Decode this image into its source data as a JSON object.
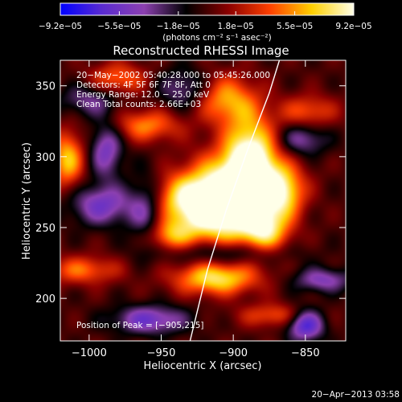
{
  "chart_data": {
    "type": "heatmap",
    "title": "Reconstructed RHESSI Image",
    "xlabel": "Heliocentric X (arcsec)",
    "ylabel": "Heliocentric Y (arcsec)",
    "xlim": [
      -1020,
      -822
    ],
    "ylim": [
      170,
      368
    ],
    "x_ticks": [
      -1000,
      -950,
      -900,
      -850
    ],
    "x_tick_labels": [
      "−1000",
      "−950",
      "−900",
      "−850"
    ],
    "y_ticks": [
      200,
      250,
      300,
      350
    ],
    "y_tick_labels": [
      "200",
      "250",
      "300",
      "350"
    ],
    "colorbar": {
      "min": -9.2e-05,
      "max": 9.2e-05,
      "ticks": [
        -9.2e-05,
        -5.5e-05,
        -1.8e-05,
        1.8e-05,
        5.5e-05,
        9.2e-05
      ],
      "tick_labels": [
        "−9.2e−05",
        "−5.5e−05",
        "−1.8e−05",
        "1.8e−05",
        "5.5e−05",
        "9.2e−05"
      ],
      "units_label": "(photons cm⁻² s⁻¹ asec⁻²)",
      "stops": [
        "#0000ff",
        "#5a2bd0",
        "#8c40b0",
        "#000000",
        "#8a0000",
        "#ff4000",
        "#ffd000",
        "#ffffe8"
      ]
    },
    "annotations": [
      "20−May−2002 05:40:28.000 to 05:45:26.000",
      "Detectors: 4F 5F 6F 7F 8F, Att 0",
      "Energy Range: 12.0 − 25.0 keV",
      "Clean      Total counts: 2.66E+03"
    ],
    "peak_label": "Position of Peak = [−905,215]",
    "peak": {
      "x": -905,
      "y": 215
    },
    "limb_curve": [
      {
        "x": -930,
        "y": 170
      },
      {
        "x": -918,
        "y": 220
      },
      {
        "x": -905,
        "y": 262
      },
      {
        "x": -890,
        "y": 305
      },
      {
        "x": -875,
        "y": 345
      },
      {
        "x": -868,
        "y": 368
      }
    ],
    "sources": [
      {
        "x": -925,
        "y": 270,
        "sx": 26,
        "sy": 13,
        "a": 0.7
      },
      {
        "x": -910,
        "y": 258,
        "sx": 20,
        "sy": 16,
        "a": 0.75
      },
      {
        "x": -895,
        "y": 285,
        "sx": 22,
        "sy": 16,
        "a": 0.65
      },
      {
        "x": -888,
        "y": 300,
        "sx": 12,
        "sy": 22,
        "a": 0.85
      },
      {
        "x": -878,
        "y": 248,
        "sx": 12,
        "sy": 12,
        "a": 0.7
      },
      {
        "x": -865,
        "y": 275,
        "sx": 10,
        "sy": 12,
        "a": 0.6
      },
      {
        "x": -912,
        "y": 214,
        "sx": 20,
        "sy": 8,
        "a": 0.75
      },
      {
        "x": -945,
        "y": 244,
        "sx": 12,
        "sy": 8,
        "a": 0.5
      },
      {
        "x": -960,
        "y": 322,
        "sx": 16,
        "sy": 8,
        "a": 0.5
      },
      {
        "x": -905,
        "y": 340,
        "sx": 14,
        "sy": 12,
        "a": 0.55
      },
      {
        "x": -848,
        "y": 332,
        "sx": 14,
        "sy": 8,
        "a": 0.4
      },
      {
        "x": -980,
        "y": 355,
        "sx": 14,
        "sy": 8,
        "a": 0.45
      },
      {
        "x": -1015,
        "y": 298,
        "sx": 8,
        "sy": 14,
        "a": 0.65
      },
      {
        "x": -1005,
        "y": 220,
        "sx": 18,
        "sy": 7,
        "a": 0.45
      },
      {
        "x": -870,
        "y": 188,
        "sx": 18,
        "sy": 6,
        "a": 0.4
      },
      {
        "x": -990,
        "y": 266,
        "sx": 16,
        "sy": 10,
        "a": -0.55
      },
      {
        "x": -960,
        "y": 263,
        "sx": 9,
        "sy": 18,
        "a": -0.5
      },
      {
        "x": -988,
        "y": 305,
        "sx": 8,
        "sy": 14,
        "a": -0.5
      },
      {
        "x": -958,
        "y": 185,
        "sx": 18,
        "sy": 7,
        "a": -0.55
      },
      {
        "x": -850,
        "y": 182,
        "sx": 9,
        "sy": 8,
        "a": -0.75
      },
      {
        "x": -838,
        "y": 213,
        "sx": 14,
        "sy": 6,
        "a": -0.45
      },
      {
        "x": -852,
        "y": 312,
        "sx": 12,
        "sy": 8,
        "a": -0.4
      },
      {
        "x": -935,
        "y": 348,
        "sx": 12,
        "sy": 10,
        "a": -0.35
      },
      {
        "x": -1000,
        "y": 340,
        "sx": 14,
        "sy": 8,
        "a": -0.35
      },
      {
        "x": -905,
        "y": 232,
        "sx": 30,
        "sy": 6,
        "a": -0.35
      }
    ]
  },
  "timestamp": "20−Apr−2013 03:58"
}
